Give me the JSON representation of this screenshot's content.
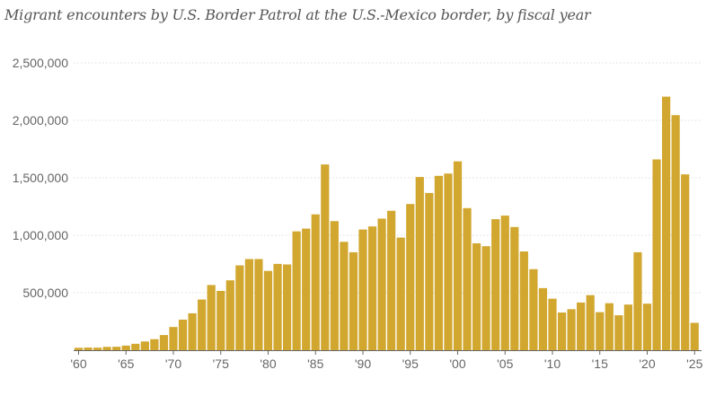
{
  "chart_data": {
    "type": "bar",
    "title": "Migrant encounters by U.S. Border Patrol at the U.S.-Mexico border, by fiscal year",
    "xlabel": "",
    "ylabel": "",
    "ylim": [
      0,
      2500000
    ],
    "grid": true,
    "bar_color": "#d2a72f",
    "yticks": [
      {
        "value": 500000,
        "label": "500,000"
      },
      {
        "value": 1000000,
        "label": "1,000,000"
      },
      {
        "value": 1500000,
        "label": "1,500,000"
      },
      {
        "value": 2000000,
        "label": "2,000,000"
      },
      {
        "value": 2500000,
        "label": "2,500,000"
      }
    ],
    "xticks": [
      {
        "year": 1960,
        "label": "'60"
      },
      {
        "year": 1965,
        "label": "'65"
      },
      {
        "year": 1970,
        "label": "'70"
      },
      {
        "year": 1975,
        "label": "'75"
      },
      {
        "year": 1980,
        "label": "'80"
      },
      {
        "year": 1985,
        "label": "'85"
      },
      {
        "year": 1990,
        "label": "'90"
      },
      {
        "year": 1995,
        "label": "'95"
      },
      {
        "year": 2000,
        "label": "'00"
      },
      {
        "year": 2005,
        "label": "'05"
      },
      {
        "year": 2010,
        "label": "'10"
      },
      {
        "year": 2015,
        "label": "'15"
      },
      {
        "year": 2020,
        "label": "'20"
      },
      {
        "year": 2025,
        "label": "'25"
      }
    ],
    "categories": [
      1960,
      1961,
      1962,
      1963,
      1964,
      1965,
      1966,
      1967,
      1968,
      1969,
      1970,
      1971,
      1972,
      1973,
      1974,
      1975,
      1976,
      1977,
      1978,
      1979,
      1980,
      1981,
      1982,
      1983,
      1984,
      1985,
      1986,
      1987,
      1988,
      1989,
      1990,
      1991,
      1992,
      1993,
      1994,
      1995,
      1996,
      1997,
      1998,
      1999,
      2000,
      2001,
      2002,
      2003,
      2004,
      2005,
      2006,
      2007,
      2008,
      2009,
      2010,
      2011,
      2012,
      2013,
      2014,
      2015,
      2016,
      2017,
      2018,
      2019,
      2020,
      2021,
      2022,
      2023,
      2024,
      2025
    ],
    "values": [
      21000,
      23000,
      22000,
      29000,
      30000,
      40000,
      56000,
      76000,
      96000,
      132000,
      202000,
      266000,
      321000,
      441000,
      567000,
      516000,
      608000,
      738000,
      793000,
      793000,
      690000,
      751000,
      746000,
      1034000,
      1058000,
      1182000,
      1616000,
      1123000,
      943000,
      852000,
      1050000,
      1077000,
      1145000,
      1213000,
      980000,
      1272000,
      1507000,
      1368000,
      1517000,
      1537000,
      1643000,
      1236000,
      930000,
      905000,
      1140000,
      1171000,
      1072000,
      859000,
      705000,
      540000,
      448000,
      328000,
      357000,
      415000,
      479000,
      331000,
      409000,
      304000,
      397000,
      852000,
      405000,
      1660000,
      2206000,
      2045000,
      1530000,
      238000
    ]
  }
}
